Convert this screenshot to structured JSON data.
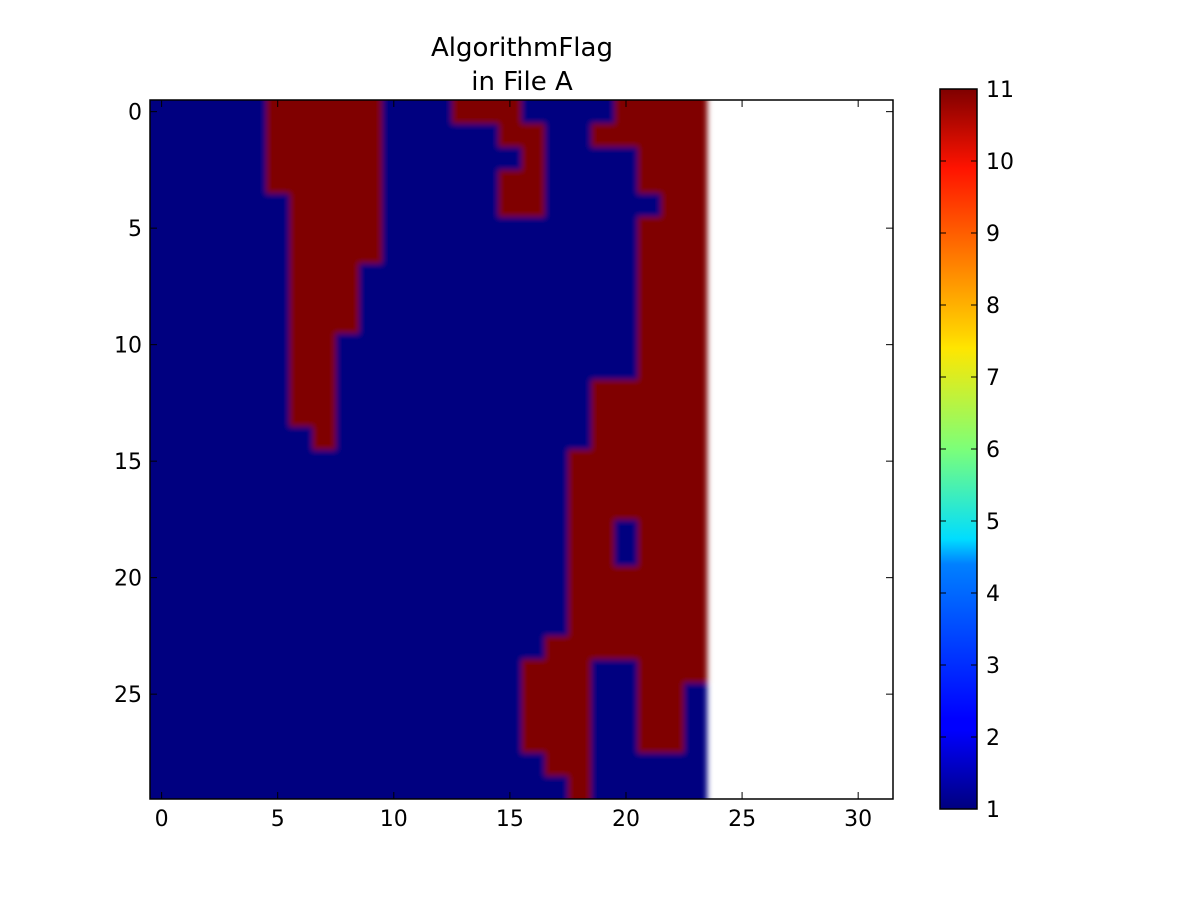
{
  "chart_data": {
    "type": "heatmap",
    "title_line1": "AlgorithmFlag",
    "title_line2": "in File A",
    "xlabel": "",
    "ylabel": "",
    "colormap": "jet",
    "interpolation": "bilinear",
    "xlim": [
      -0.5,
      31.5
    ],
    "ylim": [
      29.5,
      -0.5
    ],
    "x_ticks": [
      "0",
      "5",
      "10",
      "15",
      "20",
      "25",
      "30"
    ],
    "y_ticks": [
      "0",
      "5",
      "10",
      "15",
      "20",
      "25"
    ],
    "colorbar_ticks": [
      "1",
      "2",
      "3",
      "4",
      "5",
      "6",
      "7",
      "8",
      "9",
      "10",
      "11"
    ],
    "value_range": [
      1,
      11
    ],
    "columns_with_data": 24,
    "rows": 30,
    "high_value": 11,
    "low_value": 1,
    "high_value_runs_by_row": [
      [
        [
          5,
          9
        ],
        [
          13,
          15
        ],
        [
          20,
          23
        ]
      ],
      [
        [
          5,
          9
        ],
        [
          15,
          16
        ],
        [
          19,
          23
        ]
      ],
      [
        [
          5,
          9
        ],
        [
          16,
          16
        ],
        [
          21,
          23
        ]
      ],
      [
        [
          5,
          9
        ],
        [
          15,
          16
        ],
        [
          21,
          23
        ]
      ],
      [
        [
          6,
          9
        ],
        [
          15,
          16
        ],
        [
          22,
          23
        ]
      ],
      [
        [
          6,
          9
        ],
        [
          21,
          23
        ]
      ],
      [
        [
          6,
          9
        ],
        [
          21,
          23
        ]
      ],
      [
        [
          6,
          8
        ],
        [
          21,
          23
        ]
      ],
      [
        [
          6,
          8
        ],
        [
          21,
          23
        ]
      ],
      [
        [
          6,
          8
        ],
        [
          21,
          23
        ]
      ],
      [
        [
          6,
          7
        ],
        [
          21,
          23
        ]
      ],
      [
        [
          6,
          7
        ],
        [
          21,
          23
        ]
      ],
      [
        [
          6,
          7
        ],
        [
          19,
          23
        ]
      ],
      [
        [
          6,
          7
        ],
        [
          19,
          23
        ]
      ],
      [
        [
          7,
          7
        ],
        [
          19,
          23
        ]
      ],
      [
        [
          18,
          23
        ]
      ],
      [
        [
          18,
          23
        ]
      ],
      [
        [
          18,
          23
        ]
      ],
      [
        [
          18,
          19
        ],
        [
          21,
          23
        ]
      ],
      [
        [
          18,
          19
        ],
        [
          21,
          23
        ]
      ],
      [
        [
          18,
          23
        ]
      ],
      [
        [
          18,
          23
        ]
      ],
      [
        [
          18,
          23
        ]
      ],
      [
        [
          17,
          23
        ]
      ],
      [
        [
          16,
          18
        ],
        [
          21,
          23
        ]
      ],
      [
        [
          16,
          18
        ],
        [
          21,
          22
        ]
      ],
      [
        [
          16,
          18
        ],
        [
          21,
          22
        ]
      ],
      [
        [
          16,
          18
        ],
        [
          21,
          22
        ]
      ],
      [
        [
          17,
          18
        ]
      ],
      [
        [
          18,
          18
        ]
      ]
    ],
    "colors": {
      "high": "#800000",
      "low": "#000080"
    }
  }
}
